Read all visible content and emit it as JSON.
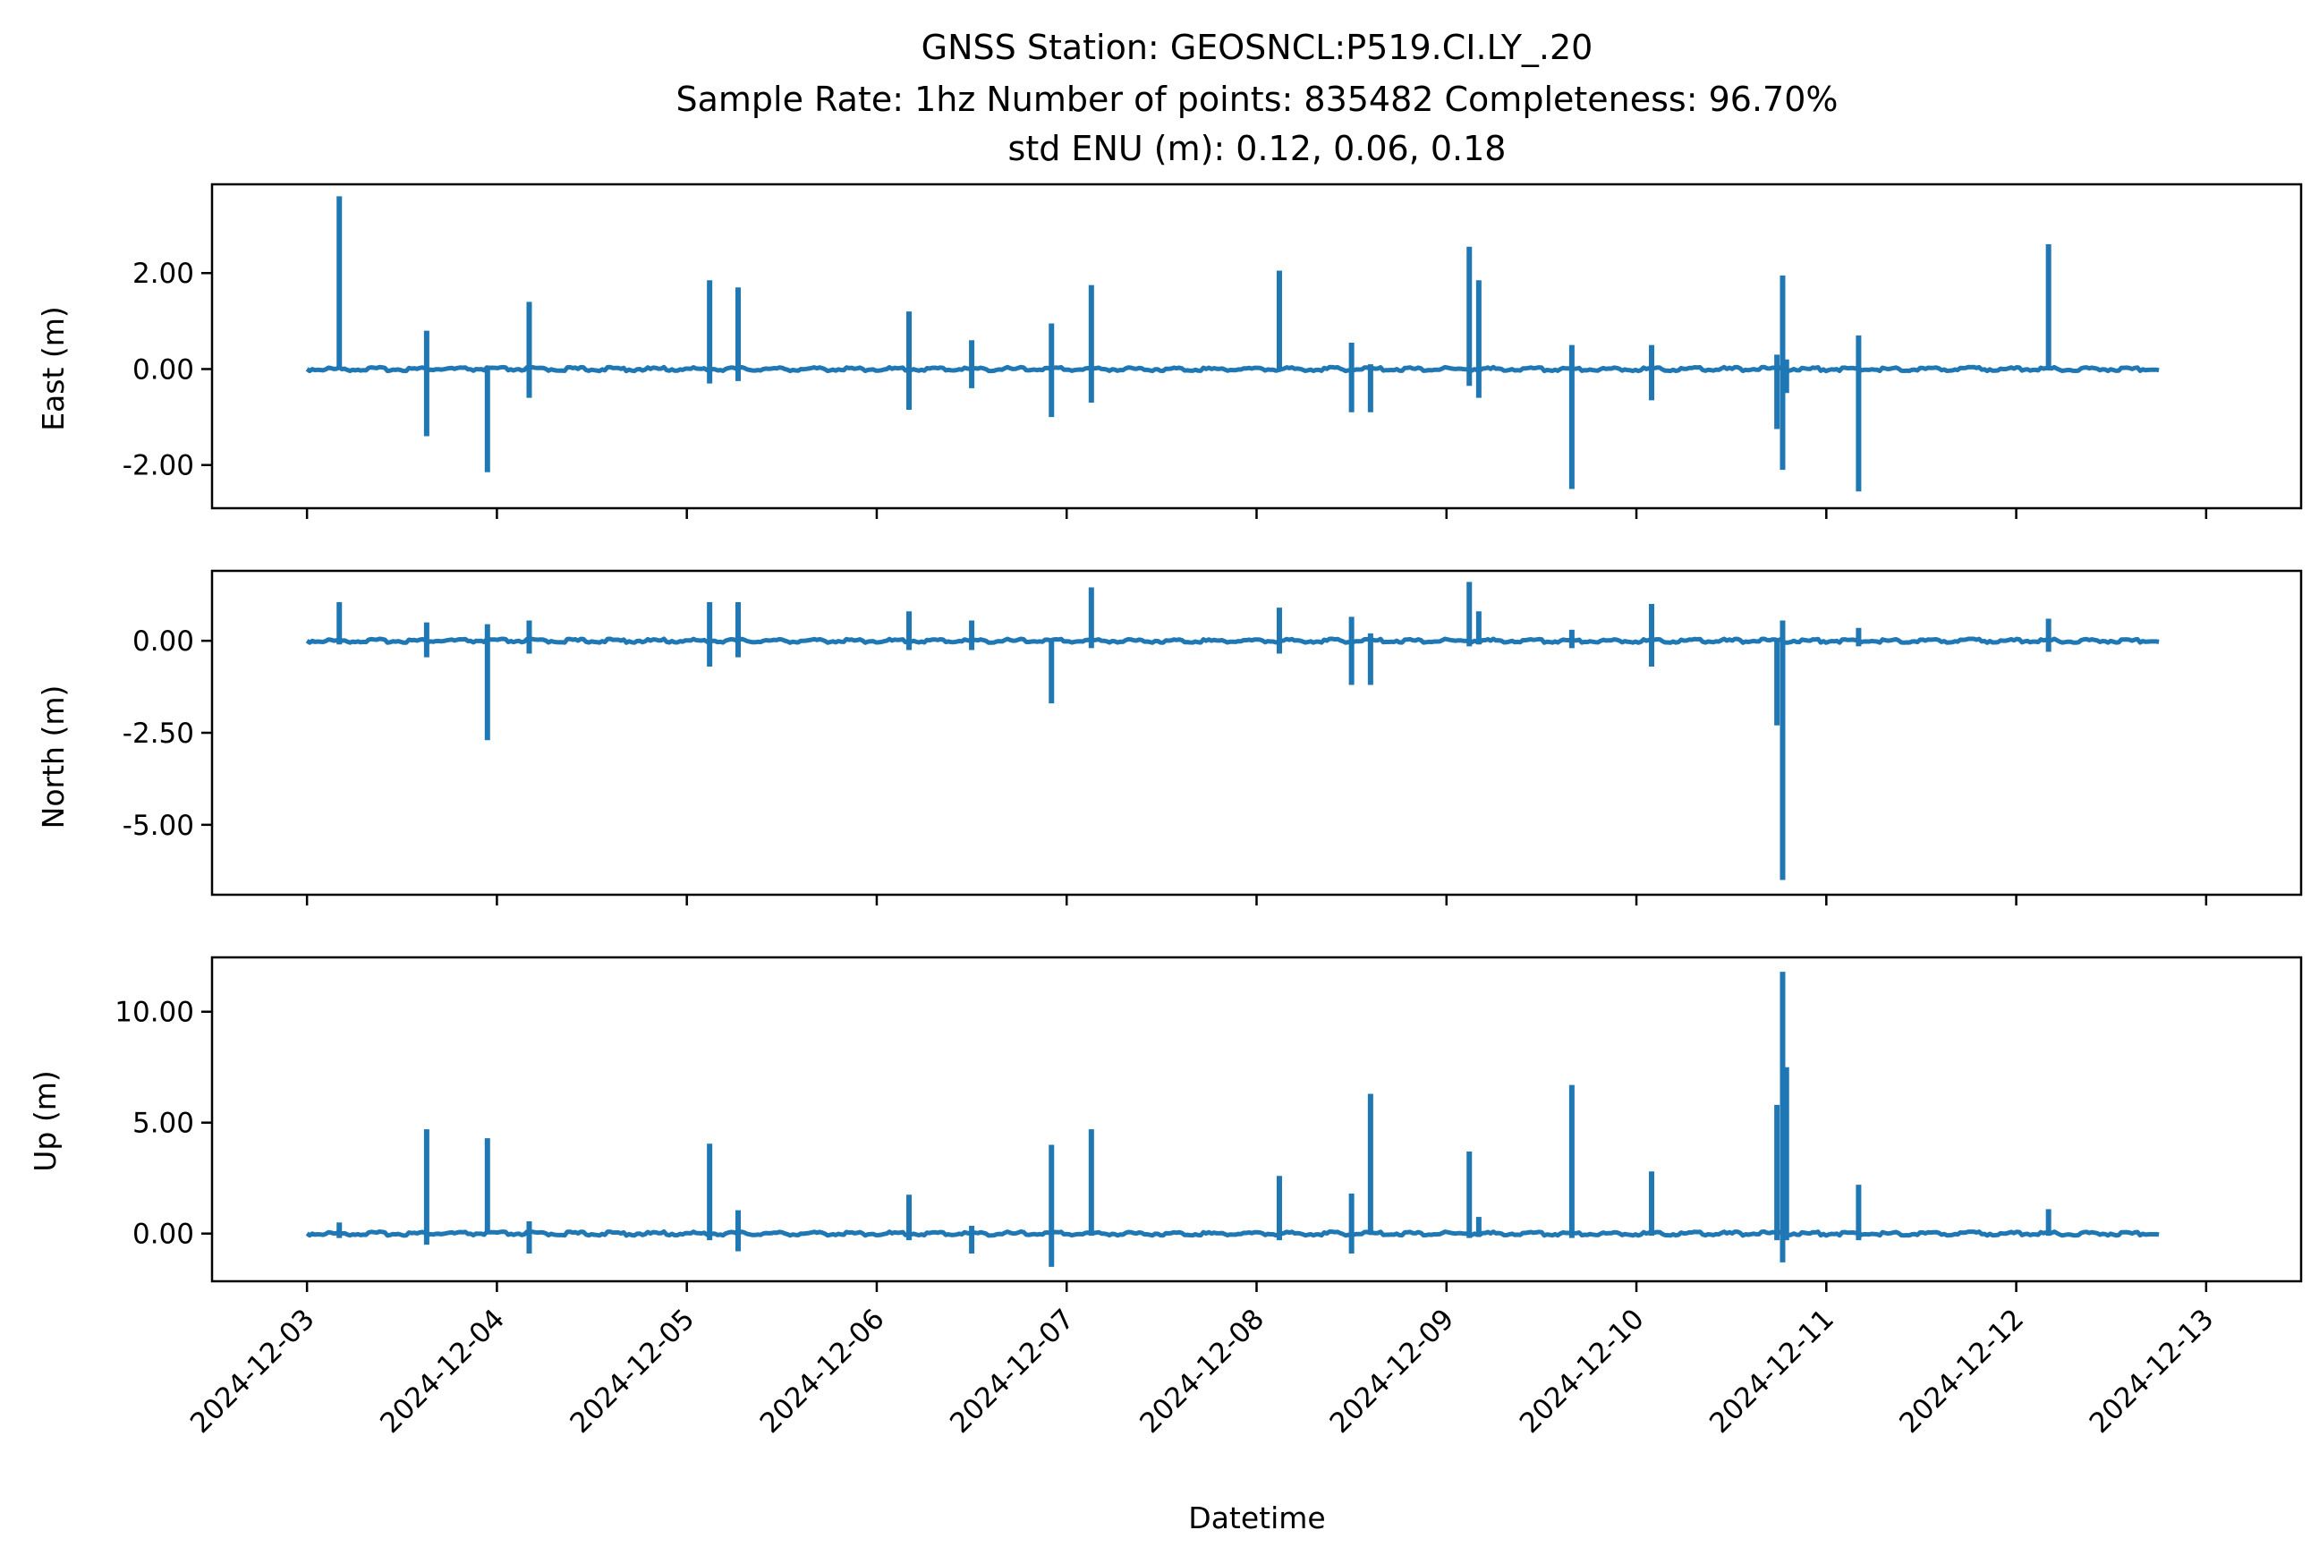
{
  "chart_data": {
    "type": "line",
    "title_lines": [
      "GNSS Station: GEOSNCL:P519.CI.LY_.20",
      "Sample Rate: 1hz   Number of points: 835482    Completeness:  96.70%",
      "std ENU (m):  0.12, 0.06, 0.18"
    ],
    "xlabel": "Datetime",
    "line_color": "#1f77b4",
    "x_unit": "days since 2024-12-03 00:00",
    "xlim": [
      -0.5,
      10.5
    ],
    "data_x_range": [
      0.0,
      9.76
    ],
    "x_ticks": [
      {
        "value": 0,
        "label": "2024-12-03"
      },
      {
        "value": 1,
        "label": "2024-12-04"
      },
      {
        "value": 2,
        "label": "2024-12-05"
      },
      {
        "value": 3,
        "label": "2024-12-06"
      },
      {
        "value": 4,
        "label": "2024-12-07"
      },
      {
        "value": 5,
        "label": "2024-12-08"
      },
      {
        "value": 6,
        "label": "2024-12-09"
      },
      {
        "value": 7,
        "label": "2024-12-10"
      },
      {
        "value": 8,
        "label": "2024-12-11"
      },
      {
        "value": 9,
        "label": "2024-12-12"
      },
      {
        "value": 10,
        "label": "2024-12-13"
      }
    ],
    "panels": [
      {
        "name": "east",
        "ylabel": "East (m)",
        "ylim": [
          -2.9,
          3.85
        ],
        "y_ticks": [
          {
            "value": 2.0,
            "label": "2.00"
          },
          {
            "value": 0.0,
            "label": "0.00"
          },
          {
            "value": -2.0,
            "label": "-2.00"
          }
        ],
        "spikes": [
          {
            "x": 0.17,
            "min": 0.0,
            "max": 3.6
          },
          {
            "x": 0.63,
            "min": -1.4,
            "max": 0.8
          },
          {
            "x": 0.95,
            "min": -2.15,
            "max": 0.0
          },
          {
            "x": 1.17,
            "min": -0.6,
            "max": 1.4
          },
          {
            "x": 2.12,
            "min": -0.3,
            "max": 1.85
          },
          {
            "x": 2.27,
            "min": -0.25,
            "max": 1.7
          },
          {
            "x": 3.17,
            "min": -0.85,
            "max": 1.2
          },
          {
            "x": 3.5,
            "min": -0.4,
            "max": 0.6
          },
          {
            "x": 3.92,
            "min": -1.0,
            "max": 0.95
          },
          {
            "x": 4.13,
            "min": -0.7,
            "max": 1.75
          },
          {
            "x": 5.12,
            "min": 0.0,
            "max": 2.05
          },
          {
            "x": 5.5,
            "min": -0.9,
            "max": 0.55
          },
          {
            "x": 5.6,
            "min": -0.9,
            "max": 0.1
          },
          {
            "x": 6.12,
            "min": -0.35,
            "max": 2.55
          },
          {
            "x": 6.17,
            "min": -0.6,
            "max": 1.85
          },
          {
            "x": 6.66,
            "min": -2.5,
            "max": 0.5
          },
          {
            "x": 7.08,
            "min": -0.65,
            "max": 0.5
          },
          {
            "x": 7.74,
            "min": -1.25,
            "max": 0.3
          },
          {
            "x": 7.77,
            "min": -2.1,
            "max": 1.95
          },
          {
            "x": 7.79,
            "min": -0.5,
            "max": 0.2
          },
          {
            "x": 8.17,
            "min": -2.55,
            "max": 0.7
          },
          {
            "x": 9.17,
            "min": 0.0,
            "max": 2.6
          }
        ]
      },
      {
        "name": "north",
        "ylabel": "North (m)",
        "ylim": [
          -6.9,
          1.9
        ],
        "y_ticks": [
          {
            "value": 0.0,
            "label": "0.00"
          },
          {
            "value": -2.5,
            "label": "-2.50"
          },
          {
            "value": -5.0,
            "label": "-5.00"
          }
        ],
        "spikes": [
          {
            "x": 0.17,
            "min": -0.1,
            "max": 1.05
          },
          {
            "x": 0.63,
            "min": -0.45,
            "max": 0.5
          },
          {
            "x": 0.95,
            "min": -2.7,
            "max": 0.45
          },
          {
            "x": 1.17,
            "min": -0.35,
            "max": 0.55
          },
          {
            "x": 2.12,
            "min": -0.7,
            "max": 1.05
          },
          {
            "x": 2.27,
            "min": -0.45,
            "max": 1.05
          },
          {
            "x": 3.17,
            "min": -0.25,
            "max": 0.8
          },
          {
            "x": 3.5,
            "min": -0.25,
            "max": 0.55
          },
          {
            "x": 3.92,
            "min": -1.7,
            "max": 0.0
          },
          {
            "x": 4.13,
            "min": -0.2,
            "max": 1.45
          },
          {
            "x": 5.12,
            "min": -0.35,
            "max": 0.9
          },
          {
            "x": 5.5,
            "min": -1.2,
            "max": 0.65
          },
          {
            "x": 5.6,
            "min": -1.2,
            "max": 0.2
          },
          {
            "x": 6.12,
            "min": -0.15,
            "max": 1.6
          },
          {
            "x": 6.17,
            "min": -0.1,
            "max": 0.8
          },
          {
            "x": 6.66,
            "min": -0.2,
            "max": 0.3
          },
          {
            "x": 7.08,
            "min": -0.7,
            "max": 1.0
          },
          {
            "x": 7.74,
            "min": -2.3,
            "max": 0.0
          },
          {
            "x": 7.77,
            "min": -6.5,
            "max": 0.55
          },
          {
            "x": 8.17,
            "min": -0.15,
            "max": 0.35
          },
          {
            "x": 9.17,
            "min": -0.3,
            "max": 0.6
          }
        ]
      },
      {
        "name": "up",
        "ylabel": "Up (m)",
        "ylim": [
          -2.15,
          12.45
        ],
        "y_ticks": [
          {
            "value": 10.0,
            "label": "10.00"
          },
          {
            "value": 5.0,
            "label": "5.00"
          },
          {
            "value": 0.0,
            "label": "0.00"
          }
        ],
        "spikes": [
          {
            "x": 0.17,
            "min": -0.2,
            "max": 0.5
          },
          {
            "x": 0.63,
            "min": -0.5,
            "max": 4.7
          },
          {
            "x": 0.95,
            "min": 0.0,
            "max": 4.3
          },
          {
            "x": 1.17,
            "min": -0.9,
            "max": 0.55
          },
          {
            "x": 2.12,
            "min": -0.3,
            "max": 4.05
          },
          {
            "x": 2.27,
            "min": -0.8,
            "max": 1.05
          },
          {
            "x": 3.17,
            "min": -0.3,
            "max": 1.75
          },
          {
            "x": 3.5,
            "min": -0.9,
            "max": 0.35
          },
          {
            "x": 3.92,
            "min": -1.5,
            "max": 4.0
          },
          {
            "x": 4.13,
            "min": -0.1,
            "max": 4.7
          },
          {
            "x": 5.12,
            "min": -0.3,
            "max": 2.6
          },
          {
            "x": 5.5,
            "min": -0.9,
            "max": 1.8
          },
          {
            "x": 5.6,
            "min": 0.0,
            "max": 6.3
          },
          {
            "x": 6.12,
            "min": -0.2,
            "max": 3.7
          },
          {
            "x": 6.17,
            "min": -0.1,
            "max": 0.75
          },
          {
            "x": 6.66,
            "min": -0.2,
            "max": 6.7
          },
          {
            "x": 7.08,
            "min": -0.1,
            "max": 2.8
          },
          {
            "x": 7.74,
            "min": -0.3,
            "max": 5.8
          },
          {
            "x": 7.77,
            "min": -1.3,
            "max": 11.8
          },
          {
            "x": 7.79,
            "min": -0.3,
            "max": 7.5
          },
          {
            "x": 8.17,
            "min": -0.3,
            "max": 2.2
          },
          {
            "x": 9.17,
            "min": -0.1,
            "max": 1.1
          }
        ]
      }
    ]
  }
}
